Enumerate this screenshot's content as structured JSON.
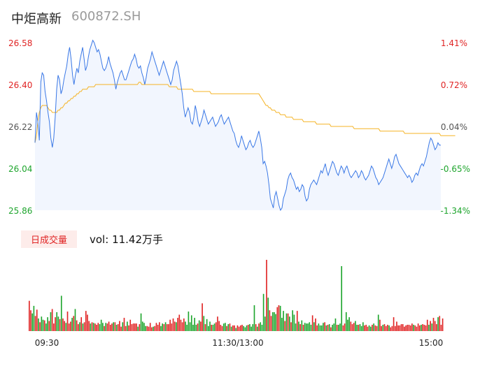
{
  "header": {
    "name": "中炬高新",
    "code": "600872.SH"
  },
  "volume_legend": {
    "label": "日成交量",
    "prefix": "vol:",
    "value": "11.42万手"
  },
  "colors": {
    "price": "#3a78e6",
    "avg": "#f5b324",
    "up": "#e02424",
    "down": "#1ea52d",
    "neutral": "#555555",
    "area": "#f2f6fe"
  },
  "chart_data": [
    {
      "type": "line",
      "title": "",
      "y_ticks_left": [
        "26.58",
        "26.40",
        "26.22",
        "26.04",
        "25.86"
      ],
      "y_ticks_right": [
        "1.41%",
        "0.72%",
        "0.04%",
        "-0.65%",
        "-1.34%"
      ],
      "ylim": [
        25.86,
        26.58
      ],
      "series": [
        {
          "values": [
            26.15,
            26.28,
            26.24,
            26.16,
            26.41,
            26.45,
            26.44,
            26.37,
            26.33,
            26.28,
            26.24,
            26.17,
            26.13,
            26.17,
            26.26,
            26.38,
            26.44,
            26.42,
            26.36,
            26.38,
            26.42,
            26.45,
            26.48,
            26.53,
            26.56,
            26.51,
            26.44,
            26.4,
            26.44,
            26.47,
            26.45,
            26.5,
            26.53,
            26.56,
            26.51,
            26.46,
            26.48,
            26.52,
            26.55,
            26.57,
            26.59,
            26.58,
            26.56,
            26.54,
            26.55,
            26.53,
            26.5,
            26.47,
            26.46,
            26.47,
            26.49,
            26.52,
            26.49,
            26.47,
            26.45,
            26.42,
            26.38,
            26.41,
            26.43,
            26.45,
            26.46,
            26.44,
            26.42,
            26.42,
            26.44,
            26.46,
            26.48,
            26.5,
            26.51,
            26.53,
            26.51,
            26.48,
            26.47,
            26.48,
            26.45,
            26.43,
            26.4,
            26.43,
            26.47,
            26.49,
            26.51,
            26.54,
            26.52,
            26.5,
            26.48,
            26.46,
            26.44,
            26.46,
            26.48,
            26.5,
            26.48,
            26.46,
            26.44,
            26.42,
            26.4,
            26.42,
            26.46,
            26.48,
            26.5,
            26.48,
            26.44,
            26.4,
            26.36,
            26.3,
            26.26,
            26.28,
            26.3,
            26.28,
            26.24,
            26.23,
            26.26,
            26.31,
            26.28,
            26.24,
            26.22,
            26.24,
            26.26,
            26.29,
            26.27,
            26.25,
            26.23,
            26.24,
            26.25,
            26.26,
            26.24,
            26.22,
            26.23,
            26.24,
            26.26,
            26.27,
            26.25,
            26.23,
            26.24,
            26.25,
            26.26,
            26.24,
            26.22,
            26.2,
            26.19,
            26.16,
            26.14,
            26.13,
            26.15,
            26.18,
            26.16,
            26.14,
            26.12,
            26.13,
            26.15,
            26.16,
            26.14,
            26.13,
            26.14,
            26.16,
            26.18,
            26.2,
            26.17,
            26.13,
            26.06,
            26.07,
            26.05,
            26.02,
            25.97,
            25.91,
            25.89,
            25.87,
            25.92,
            25.94,
            25.91,
            25.88,
            25.86,
            25.87,
            25.91,
            25.93,
            25.95,
            25.99,
            26.01,
            26.02,
            26.0,
            25.99,
            25.97,
            25.95,
            25.96,
            25.94,
            25.95,
            25.97,
            25.96,
            25.92,
            25.9,
            25.91,
            25.95,
            25.97,
            25.98,
            25.99,
            25.98,
            25.97,
            25.99,
            26.01,
            26.03,
            26.02,
            26.04,
            26.06,
            26.03,
            26.01,
            26.03,
            26.05,
            26.07,
            26.06,
            26.04,
            26.02,
            26.01,
            26.03,
            26.05,
            26.04,
            26.02,
            26.04,
            26.05,
            26.03,
            26.01,
            26.0,
            26.01,
            26.02,
            26.03,
            26.02,
            26.0,
            26.01,
            26.03,
            26.02,
            26.0,
            25.99,
            26.0,
            26.01,
            26.03,
            26.05,
            26.04,
            26.02,
            26.0,
            25.99,
            25.97,
            25.98,
            25.99,
            26.0,
            26.02,
            26.04,
            26.06,
            26.08,
            26.06,
            26.04,
            26.06,
            26.09,
            26.1,
            26.08,
            26.06,
            26.05,
            26.04,
            26.03,
            26.02,
            26.01,
            26.0,
            26.01,
            26.0,
            25.98,
            25.99,
            26.01,
            26.02,
            26.01,
            26.03,
            26.05,
            26.06,
            26.05,
            26.07,
            26.09,
            26.12,
            26.15,
            26.17,
            26.16,
            26.14,
            26.12,
            26.13,
            26.15,
            26.14,
            26.14
          ],
          "color_key": "price"
        },
        {
          "values": [
            26.15,
            26.18,
            26.24,
            26.28,
            26.3,
            26.31,
            26.31,
            26.31,
            26.31,
            26.3,
            26.29,
            26.29,
            26.28,
            26.28,
            26.28,
            26.28,
            26.29,
            26.29,
            26.3,
            26.3,
            26.31,
            26.32,
            26.32,
            26.33,
            26.33,
            26.34,
            26.34,
            26.35,
            26.35,
            26.36,
            26.36,
            26.37,
            26.37,
            26.38,
            26.38,
            26.38,
            26.38,
            26.39,
            26.39,
            26.39,
            26.39,
            26.39,
            26.4,
            26.4,
            26.4,
            26.4,
            26.4,
            26.4,
            26.4,
            26.4,
            26.4,
            26.4,
            26.4,
            26.4,
            26.4,
            26.4,
            26.4,
            26.4,
            26.4,
            26.4,
            26.4,
            26.4,
            26.4,
            26.4,
            26.4,
            26.4,
            26.4,
            26.4,
            26.4,
            26.4,
            26.4,
            26.4,
            26.41,
            26.41,
            26.4,
            26.4,
            26.4,
            26.4,
            26.4,
            26.4,
            26.4,
            26.4,
            26.4,
            26.4,
            26.4,
            26.4,
            26.4,
            26.4,
            26.4,
            26.4,
            26.4,
            26.4,
            26.4,
            26.39,
            26.39,
            26.39,
            26.39,
            26.39,
            26.39,
            26.38,
            26.38,
            26.38,
            26.38,
            26.38,
            26.38,
            26.38,
            26.38,
            26.38,
            26.38,
            26.38,
            26.37,
            26.37,
            26.37,
            26.37,
            26.37,
            26.37,
            26.37,
            26.37,
            26.37,
            26.37,
            26.37,
            26.37,
            26.36,
            26.36,
            26.36,
            26.36,
            26.36,
            26.36,
            26.36,
            26.36,
            26.36,
            26.36,
            26.36,
            26.36,
            26.36,
            26.36,
            26.36,
            26.36,
            26.36,
            26.36,
            26.36,
            26.36,
            26.36,
            26.36,
            26.36,
            26.36,
            26.36,
            26.36,
            26.36,
            26.36,
            26.36,
            26.36,
            26.36,
            26.36,
            26.36,
            26.36,
            26.35,
            26.34,
            26.33,
            26.32,
            26.31,
            26.31,
            26.3,
            26.3,
            26.29,
            26.29,
            26.29,
            26.28,
            26.28,
            26.28,
            26.27,
            26.27,
            26.27,
            26.27,
            26.26,
            26.26,
            26.26,
            26.26,
            26.26,
            26.25,
            26.25,
            26.25,
            26.25,
            26.25,
            26.25,
            26.25,
            26.24,
            26.24,
            26.24,
            26.24,
            26.24,
            26.24,
            26.24,
            26.24,
            26.24,
            26.23,
            26.23,
            26.23,
            26.23,
            26.23,
            26.23,
            26.23,
            26.23,
            26.23,
            26.23,
            26.22,
            26.22,
            26.22,
            26.22,
            26.22,
            26.22,
            26.22,
            26.22,
            26.22,
            26.22,
            26.22,
            26.22,
            26.22,
            26.22,
            26.22,
            26.22,
            26.21,
            26.21,
            26.21,
            26.21,
            26.21,
            26.21,
            26.21,
            26.21,
            26.21,
            26.21,
            26.21,
            26.21,
            26.21,
            26.21,
            26.21,
            26.21,
            26.21,
            26.21,
            26.2,
            26.2,
            26.2,
            26.2,
            26.2,
            26.2,
            26.2,
            26.2,
            26.2,
            26.2,
            26.2,
            26.2,
            26.2,
            26.2,
            26.2,
            26.2,
            26.2,
            26.19,
            26.19,
            26.19,
            26.19,
            26.19,
            26.19,
            26.19,
            26.19,
            26.19,
            26.19,
            26.19,
            26.19,
            26.19,
            26.19,
            26.19,
            26.19,
            26.19,
            26.19,
            26.19,
            26.19,
            26.19,
            26.19,
            26.19,
            26.19,
            26.19,
            26.18,
            26.18,
            26.18,
            26.18,
            26.18,
            26.18,
            26.18,
            26.18,
            26.18,
            26.18,
            26.18
          ],
          "color_key": "avg"
        }
      ]
    },
    {
      "type": "bar",
      "title": "",
      "x_ticks": [
        "09:30",
        "11:30/13:00",
        "15:00"
      ],
      "values": [
        48,
        33,
        28,
        40,
        24,
        34,
        20,
        14,
        23,
        18,
        17,
        12,
        22,
        16,
        30,
        35,
        12,
        22,
        30,
        23,
        19,
        56,
        20,
        16,
        13,
        31,
        12,
        15,
        21,
        24,
        35,
        17,
        11,
        14,
        22,
        12,
        14,
        32,
        26,
        16,
        12,
        14,
        13,
        12,
        10,
        13,
        11,
        18,
        13,
        8,
        13,
        12,
        15,
        10,
        12,
        14,
        14,
        10,
        11,
        16,
        7,
        14,
        21,
        8,
        15,
        9,
        18,
        11,
        12,
        12,
        12,
        7,
        11,
        28,
        15,
        13,
        8,
        8,
        7,
        13,
        6,
        7,
        8,
        13,
        10,
        14,
        8,
        12,
        11,
        14,
        11,
        11,
        18,
        12,
        20,
        15,
        14,
        21,
        26,
        18,
        14,
        20,
        15,
        10,
        31,
        14,
        25,
        10,
        21,
        10,
        12,
        17,
        15,
        44,
        24,
        11,
        19,
        8,
        15,
        10,
        10,
        12,
        14,
        23,
        16,
        10,
        8,
        12,
        13,
        8,
        11,
        12,
        7,
        9,
        9,
        5,
        9,
        7,
        9,
        10,
        8,
        6,
        9,
        10,
        11,
        7,
        11,
        41,
        11,
        7,
        12,
        14,
        10,
        59,
        23,
        113,
        53,
        33,
        24,
        30,
        30,
        27,
        38,
        41,
        40,
        21,
        32,
        16,
        28,
        28,
        23,
        14,
        33,
        26,
        12,
        32,
        15,
        11,
        17,
        10,
        13,
        12,
        12,
        14,
        10,
        25,
        14,
        20,
        9,
        12,
        9,
        9,
        13,
        14,
        9,
        10,
        11,
        6,
        10,
        12,
        20,
        10,
        10,
        12,
        103,
        9,
        12,
        30,
        18,
        22,
        15,
        11,
        13,
        16,
        10,
        10,
        11,
        8,
        14,
        9,
        10,
        7,
        9,
        7,
        10,
        12,
        9,
        8,
        26,
        18,
        8,
        10,
        11,
        8,
        10,
        9,
        6,
        8,
        22,
        8,
        15,
        9,
        9,
        11,
        11,
        7,
        9,
        10,
        10,
        9,
        12,
        10,
        9,
        7,
        12,
        9,
        10,
        11,
        10,
        9,
        18,
        10,
        16,
        12,
        21,
        16,
        11,
        22,
        24,
        10,
        20
      ],
      "colors": [
        "up",
        "up",
        "down",
        "down",
        "up",
        "up",
        "down",
        "up",
        "down",
        "down",
        "up",
        "down",
        "down",
        "up",
        "down",
        "up",
        "up",
        "up",
        "down",
        "down",
        "up",
        "down",
        "up",
        "up",
        "down",
        "up",
        "up",
        "up",
        "down",
        "up",
        "down",
        "up",
        "up",
        "down",
        "up",
        "down",
        "up",
        "up",
        "up",
        "up",
        "down",
        "up",
        "down",
        "up",
        "up",
        "up",
        "down",
        "down",
        "down",
        "up",
        "down",
        "up",
        "up",
        "up",
        "up",
        "down",
        "up",
        "down",
        "up",
        "up",
        "up",
        "down",
        "up",
        "up",
        "down",
        "up",
        "up",
        "up",
        "up",
        "up",
        "up",
        "down",
        "up",
        "down",
        "down",
        "down",
        "down",
        "up",
        "up",
        "up",
        "up",
        "down",
        "up",
        "up",
        "up",
        "up",
        "down",
        "down",
        "up",
        "down",
        "up",
        "up",
        "up",
        "up",
        "up",
        "up",
        "down",
        "up",
        "up",
        "up",
        "up",
        "up",
        "down",
        "down",
        "down",
        "down",
        "down",
        "down",
        "down",
        "down",
        "up",
        "down",
        "up",
        "up",
        "down",
        "up",
        "down",
        "down",
        "down",
        "up",
        "down",
        "down",
        "up",
        "up",
        "up",
        "up",
        "up",
        "down",
        "down",
        "up",
        "down",
        "up",
        "down",
        "up",
        "up",
        "down",
        "up",
        "up",
        "up",
        "up",
        "down",
        "down",
        "down",
        "up",
        "down",
        "down",
        "down",
        "down",
        "up",
        "down",
        "up",
        "down",
        "down",
        "down",
        "down",
        "up",
        "down",
        "up",
        "up",
        "down",
        "down",
        "down",
        "up",
        "up",
        "down",
        "down",
        "down",
        "up",
        "down",
        "up",
        "down",
        "up",
        "down",
        "down",
        "down",
        "up",
        "down",
        "up",
        "down",
        "up",
        "down",
        "down",
        "down",
        "down",
        "down",
        "up",
        "down",
        "up",
        "up",
        "down",
        "down",
        "down",
        "down",
        "up",
        "down",
        "up",
        "down",
        "up",
        "down",
        "down",
        "down",
        "up",
        "down",
        "down",
        "down",
        "up",
        "up",
        "down",
        "down",
        "down",
        "up",
        "up",
        "up",
        "down",
        "down",
        "up",
        "down",
        "down",
        "down",
        "up",
        "up",
        "up",
        "down",
        "down",
        "up",
        "down",
        "up",
        "up",
        "down",
        "up",
        "up",
        "down",
        "up",
        "up",
        "up",
        "down",
        "up",
        "up",
        "up",
        "up",
        "up",
        "up",
        "up",
        "up",
        "up",
        "up",
        "up",
        "up",
        "up",
        "up",
        "up",
        "down",
        "up",
        "up",
        "up",
        "up",
        "down",
        "up",
        "up",
        "up",
        "up",
        "down",
        "up",
        "down",
        "up",
        "up",
        "up",
        "down",
        "up",
        "up",
        "up",
        "up",
        "up",
        "up",
        "up",
        "down",
        "up",
        "up",
        "up",
        "up",
        "up",
        "up",
        "down",
        "up",
        "up",
        "up",
        "up",
        "up",
        "up",
        "up",
        "up",
        "up",
        "up",
        "up",
        "up",
        "up",
        "neutral"
      ]
    }
  ]
}
